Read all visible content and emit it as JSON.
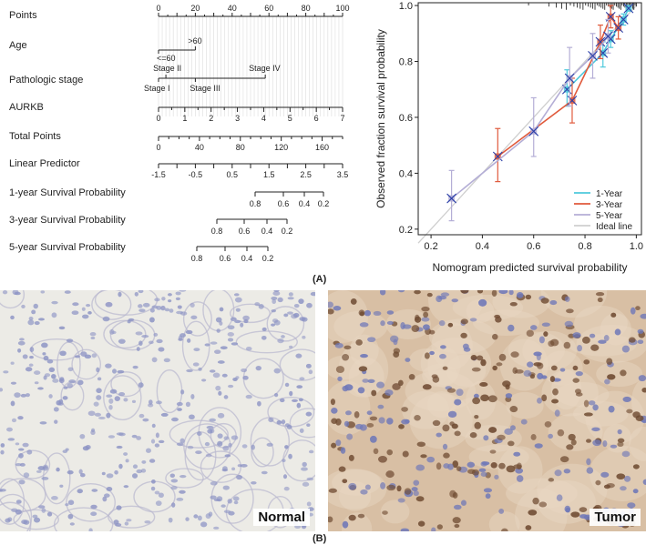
{
  "figure": {
    "panel_a_label": "(A)",
    "panel_b_label": "(B)"
  },
  "nomogram": {
    "rows": [
      {
        "name": "Points",
        "ticks": [
          {
            "v": 0,
            "t": "0"
          },
          {
            "v": 20,
            "t": "20"
          },
          {
            "v": 40,
            "t": "40"
          },
          {
            "v": 60,
            "t": "60"
          },
          {
            "v": 80,
            "t": "80"
          },
          {
            "v": 100,
            "t": "100"
          }
        ]
      },
      {
        "name": "Age",
        "levels": [
          {
            "label": "<=60",
            "points": 0
          },
          {
            "label": ">60",
            "points": 20
          }
        ]
      },
      {
        "name": "Pathologic stage",
        "levels": [
          {
            "label": "Stage I",
            "points": 0
          },
          {
            "label": "Stage II",
            "points": 4
          },
          {
            "label": "Stage III",
            "points": 20
          },
          {
            "label": "Stage IV",
            "points": 58
          }
        ]
      },
      {
        "name": "AURKB",
        "ticks": [
          {
            "v": 0,
            "t": "0"
          },
          {
            "v": 1,
            "t": "1"
          },
          {
            "v": 2,
            "t": "2"
          },
          {
            "v": 3,
            "t": "3"
          },
          {
            "v": 4,
            "t": "4"
          },
          {
            "v": 5,
            "t": "5"
          },
          {
            "v": 6,
            "t": "6"
          },
          {
            "v": 7,
            "t": "7"
          }
        ],
        "points_per_unit": 14.2857
      },
      {
        "name": "Total Points",
        "ticks": [
          {
            "v": 0,
            "t": "0"
          },
          {
            "v": 40,
            "t": "40"
          },
          {
            "v": 80,
            "t": "80"
          },
          {
            "v": 120,
            "t": "120"
          },
          {
            "v": 160,
            "t": "160"
          }
        ],
        "range": [
          0,
          180
        ]
      },
      {
        "name": "Linear Predictor",
        "ticks": [
          {
            "v": -1.5,
            "t": "-1.5"
          },
          {
            "v": -0.5,
            "t": "-0.5"
          },
          {
            "v": 0.5,
            "t": "0.5"
          },
          {
            "v": 1.5,
            "t": "1.5"
          },
          {
            "v": 2.5,
            "t": "2.5"
          },
          {
            "v": 3.5,
            "t": "3.5"
          }
        ],
        "range": [
          -1.5,
          3.5
        ]
      },
      {
        "name": "1-year Survival Probability",
        "ticks": [
          {
            "v": 0.8,
            "t": "0.8"
          },
          {
            "v": 0.6,
            "t": "0.6"
          },
          {
            "v": 0.4,
            "t": "0.4"
          },
          {
            "v": 0.2,
            "t": "0.2"
          }
        ]
      },
      {
        "name": "3-year Survival Probability",
        "ticks": [
          {
            "v": 0.8,
            "t": "0.8"
          },
          {
            "v": 0.6,
            "t": "0.6"
          },
          {
            "v": 0.4,
            "t": "0.4"
          },
          {
            "v": 0.2,
            "t": "0.2"
          }
        ]
      },
      {
        "name": "5-year Survival Probability",
        "ticks": [
          {
            "v": 0.8,
            "t": "0.8"
          },
          {
            "v": 0.6,
            "t": "0.6"
          },
          {
            "v": 0.4,
            "t": "0.4"
          },
          {
            "v": 0.2,
            "t": "0.2"
          }
        ]
      }
    ]
  },
  "chart_data": {
    "type": "line",
    "title": "",
    "xlabel": "Nomogram predicted survival probability",
    "ylabel": "Observed fraction survival probability",
    "xlim": [
      0.15,
      1.02
    ],
    "ylim": [
      0.18,
      1.01
    ],
    "xticks": [
      0.2,
      0.4,
      0.6,
      0.8,
      1.0
    ],
    "xtick_labels": [
      "0.2",
      "0.4",
      "0.6",
      "0.8",
      "1.0"
    ],
    "yticks": [
      0.2,
      0.4,
      0.6,
      0.8,
      1.0
    ],
    "ytick_labels": [
      "0.2",
      "0.4",
      "0.6",
      "0.8",
      "1.0"
    ],
    "legend_position": "bottom-right",
    "series": [
      {
        "name": "1-Year",
        "color": "#4ec9dc",
        "x": [
          0.73,
          0.87,
          0.9,
          0.95,
          0.97
        ],
        "y": [
          0.7,
          0.83,
          0.88,
          0.95,
          0.99
        ],
        "lo": [
          0.64,
          0.78,
          0.85,
          0.93,
          0.98
        ],
        "hi": [
          0.77,
          0.87,
          0.91,
          0.97,
          1.0
        ]
      },
      {
        "name": "3-Year",
        "color": "#e05a3c",
        "x": [
          0.46,
          0.75,
          0.86,
          0.9,
          0.93
        ],
        "y": [
          0.46,
          0.66,
          0.87,
          0.96,
          0.92
        ],
        "lo": [
          0.37,
          0.58,
          0.81,
          0.92,
          0.88
        ],
        "hi": [
          0.56,
          0.74,
          0.93,
          1.0,
          0.96
        ]
      },
      {
        "name": "5-Year",
        "color": "#b4aed6",
        "x": [
          0.28,
          0.6,
          0.74,
          0.83,
          0.89
        ],
        "y": [
          0.31,
          0.55,
          0.74,
          0.82,
          0.89
        ],
        "lo": [
          0.23,
          0.46,
          0.64,
          0.74,
          0.83
        ],
        "hi": [
          0.41,
          0.67,
          0.85,
          0.9,
          0.95
        ]
      }
    ],
    "ideal_line": {
      "name": "Ideal line",
      "color": "#cfcfcf"
    },
    "rug": "top"
  },
  "micrographs": [
    {
      "label": "Normal",
      "stain": "negative",
      "bg": "#ecebe6",
      "nucleus": "#8c93c4"
    },
    {
      "label": "Tumor",
      "stain": "positive",
      "bg": "#d8bfa4",
      "nucleus": "#6f4b32"
    }
  ]
}
